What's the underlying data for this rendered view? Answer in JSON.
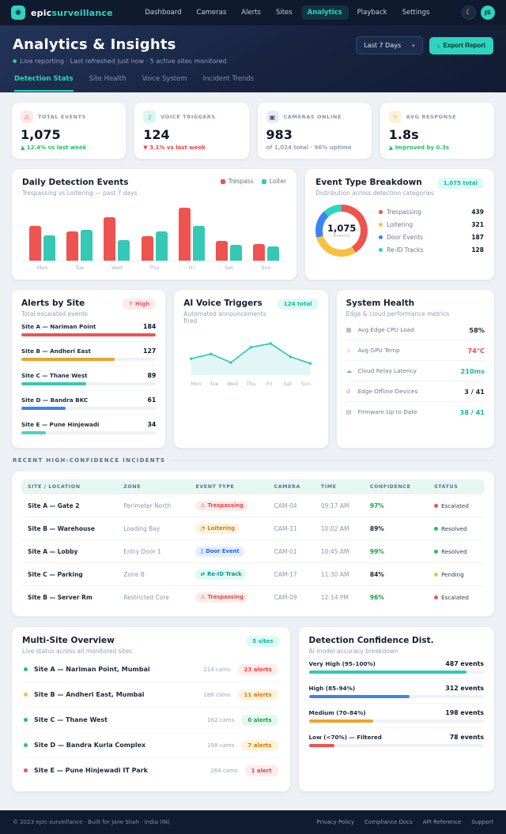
{
  "icons": {
    "logo": "◉",
    "moon": "☾",
    "chevron": "▾",
    "live_dot": "●",
    "export_arrow": "↓"
  },
  "brand": {
    "name_bold": "epic",
    "name_accent": "surveillance"
  },
  "nav": {
    "items": [
      {
        "label": "Dashboard",
        "active": false
      },
      {
        "label": "Cameras",
        "active": false
      },
      {
        "label": "Alerts",
        "active": false
      },
      {
        "label": "Sites",
        "active": false
      },
      {
        "label": "Analytics",
        "active": true
      },
      {
        "label": "Playback",
        "active": false
      },
      {
        "label": "Settings",
        "active": false
      }
    ],
    "avatar_initials": "JS"
  },
  "header": {
    "title": "Analytics & Insights",
    "subtitle": "Live reporting · Last refreshed just now · 5 active sites monitored",
    "range_selector": "Last 7 Days",
    "export_button": "Export Report"
  },
  "tabs": [
    {
      "label": "Detection Stats",
      "active": true
    },
    {
      "label": "Site Health",
      "active": false
    },
    {
      "label": "Voice System",
      "active": false
    },
    {
      "label": "Incident Trends",
      "active": false
    }
  ],
  "kpis": [
    {
      "icon": "alarm-icon",
      "glyph": "⚠",
      "tint": "#fde9e9",
      "glyph_color": "#e35d5b",
      "label": "TOTAL EVENTS",
      "value": "1,075",
      "sub": "▲ 12.4% vs last week",
      "sub_color": "#22c55e"
    },
    {
      "icon": "speaker-icon",
      "glyph": "♪",
      "tint": "#d9f6f0",
      "glyph_color": "#14b8a6",
      "label": "VOICE TRIGGERS",
      "value": "124",
      "sub": "▼ 3.1% vs last week",
      "sub_color": "#ef4444"
    },
    {
      "icon": "camera-icon",
      "glyph": "▣",
      "tint": "#e8edf5",
      "glyph_color": "#475569",
      "label": "CAMERAS ONLINE",
      "value": "983",
      "sub": "of 1,024 total · 96% uptime",
      "sub_color": "#94a3b8"
    },
    {
      "icon": "bolt-icon",
      "glyph": "⚡",
      "tint": "#fdf3d7",
      "glyph_color": "#e9a93d",
      "label": "AVG RESPONSE",
      "value": "1.8s",
      "sub": "▲ Improved by 0.3s",
      "sub_color": "#22c55e"
    }
  ],
  "chart_data": [
    {
      "id": "daily_detections",
      "type": "bar",
      "title": "Daily Detection Events",
      "subtitle": "Trespassing vs Loitering — past 7 days",
      "categories": [
        "Mon",
        "Tue",
        "Wed",
        "Thu",
        "Fri",
        "Sat",
        "Sun"
      ],
      "series": [
        {
          "name": "Trespass",
          "color": "#ef5350",
          "values": [
            62,
            52,
            78,
            44,
            95,
            35,
            30
          ]
        },
        {
          "name": "Loiter",
          "color": "#35c8b4",
          "values": [
            45,
            55,
            37,
            52,
            62,
            28,
            25
          ]
        }
      ],
      "ylim": [
        0,
        100
      ],
      "grid": false,
      "legend_position": "top-right"
    },
    {
      "id": "event_breakdown",
      "type": "pie",
      "title": "Event Type Breakdown",
      "subtitle": "Distribution across detection categories",
      "badge": "1,075 total",
      "center_value": "1,075",
      "center_label": "Events",
      "slices": [
        {
          "label": "Trespassing",
          "value": 439,
          "color": "#ef5350"
        },
        {
          "label": "Loitering",
          "value": 321,
          "color": "#f5c044"
        },
        {
          "label": "Door Events",
          "value": 187,
          "color": "#3b82f6"
        },
        {
          "label": "Re-ID Tracks",
          "value": 128,
          "color": "#2dd4bf"
        }
      ]
    },
    {
      "id": "alerts_by_site",
      "type": "bar",
      "orientation": "horizontal",
      "title": "Alerts by Site",
      "subtitle": "Total escalated events",
      "badge": "↑ High",
      "badge_color": "#e35d5b",
      "badge_bg": "#fdeaea",
      "xmax": 184,
      "rows": [
        {
          "label": "Site A — Nariman Point",
          "value": 184,
          "color": "#ef5350"
        },
        {
          "label": "Site B — Andheri East",
          "value": 127,
          "color": "#f0a12f"
        },
        {
          "label": "Site C — Thane West",
          "value": 89,
          "color": "#35c8b4"
        },
        {
          "label": "Site D — Bandra BKC",
          "value": 61,
          "color": "#3b82f6"
        },
        {
          "label": "Site E — Pune Hinjewadi",
          "value": 34,
          "color": "#4fd1c5"
        }
      ]
    },
    {
      "id": "voice_triggers",
      "type": "line",
      "title": "AI Voice Triggers",
      "subtitle": "Automated announcements fired",
      "badge": "124 total",
      "badge_color": "#14b8a6",
      "badge_bg": "#defaf4",
      "x": [
        "Mon",
        "Tue",
        "Wed",
        "Thu",
        "Fri",
        "Sat",
        "Sun"
      ],
      "values": [
        14,
        19,
        10,
        26,
        30,
        16,
        9
      ],
      "color": "#2fc8b9",
      "area": true,
      "ylim": [
        0,
        35
      ]
    },
    {
      "id": "confidence_dist",
      "type": "bar",
      "orientation": "horizontal",
      "title": "Detection Confidence Dist.",
      "subtitle": "AI model accuracy breakdown",
      "xmax": 540,
      "value_suffix": " events",
      "rows": [
        {
          "label": "Very High (95–100%)",
          "value": 487,
          "color": "#2fc8b9"
        },
        {
          "label": "High (85–94%)",
          "value": 312,
          "color": "#3b82f6"
        },
        {
          "label": "Medium (70–84%)",
          "value": 198,
          "color": "#f0a12f"
        },
        {
          "label": "Low (<70%) — Filtered",
          "value": 78,
          "color": "#ef5350"
        }
      ]
    }
  ],
  "system_health": {
    "title": "System Health",
    "subtitle": "Edge & cloud performance metrics",
    "rows": [
      {
        "icon": "cpu-icon",
        "glyph": "▦",
        "label": "Avg Edge CPU Load",
        "value": "58%",
        "color": "#1e293b"
      },
      {
        "icon": "flame-icon",
        "glyph": "♨",
        "label": "Avg GPU Temp",
        "value": "74°C",
        "color": "#ef4444"
      },
      {
        "icon": "cloud-icon",
        "glyph": "☁",
        "label": "Cloud Relay Latency",
        "value": "210ms",
        "color": "#14b8a6"
      },
      {
        "icon": "signal-icon",
        "glyph": "⊘",
        "label": "Edge Offline Devices",
        "value": "3 / 41",
        "color": "#1e293b"
      },
      {
        "icon": "firmware-icon",
        "glyph": "▤",
        "label": "Firmware Up to Date",
        "value": "38 / 41",
        "color": "#14b8a6"
      }
    ]
  },
  "incidents": {
    "section_label": "RECENT HIGH-CONFIDENCE INCIDENTS",
    "columns": [
      "SITE / LOCATION",
      "ZONE",
      "EVENT TYPE",
      "CAMERA",
      "TIME",
      "CONFIDENCE",
      "STATUS"
    ],
    "rows": [
      {
        "site": "Site A — Gate 2",
        "zone": "Perimeter North",
        "event": "Trespassing",
        "event_glyph": "⚠",
        "event_color": "#ef4444",
        "event_bg": "#fdecec",
        "camera": "CAM-04",
        "time": "09:17 AM",
        "confidence": "97%",
        "conf_color": "#16a34a",
        "status": "Escalated",
        "status_color": "#ef5350"
      },
      {
        "site": "Site B — Warehouse",
        "zone": "Loading Bay",
        "event": "Loitering",
        "event_glyph": "◔",
        "event_color": "#d97706",
        "event_bg": "#fdf3dc",
        "camera": "CAM-11",
        "time": "10:02 AM",
        "confidence": "89%",
        "conf_color": "#1e293b",
        "status": "Resolved",
        "status_color": "#22c55e"
      },
      {
        "site": "Site A — Lobby",
        "zone": "Entry Door 1",
        "event": "Door Event",
        "event_glyph": "▯",
        "event_color": "#2563eb",
        "event_bg": "#e3edfd",
        "camera": "CAM-01",
        "time": "10:45 AM",
        "confidence": "99%",
        "conf_color": "#16a34a",
        "status": "Resolved",
        "status_color": "#22c55e"
      },
      {
        "site": "Site C — Parking",
        "zone": "Zone B",
        "event": "Re-ID Track",
        "event_glyph": "⇄",
        "event_color": "#0d9488",
        "event_bg": "#defaf4",
        "camera": "CAM-17",
        "time": "11:30 AM",
        "confidence": "84%",
        "conf_color": "#1e293b",
        "status": "Pending",
        "status_color": "#f5c044"
      },
      {
        "site": "Site B — Server Rm",
        "zone": "Restricted Core",
        "event": "Trespassing",
        "event_glyph": "⚠",
        "event_color": "#ef4444",
        "event_bg": "#fdecec",
        "camera": "CAM-09",
        "time": "12:14 PM",
        "confidence": "96%",
        "conf_color": "#16a34a",
        "status": "Escalated",
        "status_color": "#ef5350"
      }
    ]
  },
  "multisite": {
    "title": "Multi-Site Overview",
    "subtitle": "Live status across all monitored sites",
    "badge": "5 sites",
    "badge_color": "#14b8a6",
    "badge_bg": "#defaf4",
    "rows": [
      {
        "dot": "#22c55e",
        "name": "Site A — Nariman Point, Mumbai",
        "cams": "214 cams",
        "alerts": "23 alerts",
        "alert_color": "#ef4444",
        "alert_bg": "#fdecec"
      },
      {
        "dot": "#f5c044",
        "name": "Site B — Andheri East, Mumbai",
        "cams": "186 cams",
        "alerts": "11 alerts",
        "alert_color": "#d97706",
        "alert_bg": "#fdf3dc"
      },
      {
        "dot": "#22c55e",
        "name": "Site C — Thane West",
        "cams": "162 cams",
        "alerts": "0 alerts",
        "alert_color": "#16a34a",
        "alert_bg": "#e3f9ec"
      },
      {
        "dot": "#22c55e",
        "name": "Site D — Bandra Kurla Complex",
        "cams": "198 cams",
        "alerts": "7 alerts",
        "alert_color": "#d97706",
        "alert_bg": "#fdf3dc"
      },
      {
        "dot": "#ef5350",
        "name": "Site E — Pune Hinjewadi IT Park",
        "cams": "264 cams",
        "alerts": "1 alert",
        "alert_color": "#ef4444",
        "alert_bg": "#fdecec"
      }
    ]
  },
  "footer": {
    "copyright": "© 2023 epic-surveillance · Built for Jane Shah · India (IN)",
    "links": [
      "Privacy Policy",
      "Compliance Docs",
      "API Reference",
      "Support"
    ]
  }
}
